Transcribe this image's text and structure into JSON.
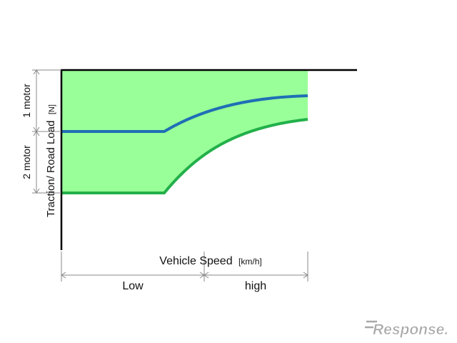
{
  "chart_data": {
    "type": "area",
    "ylabel_main": "Traction/ Road Load",
    "ylabel_unit": "[N]",
    "xlabel_main": "Vehicle Speed",
    "xlabel_unit": "[km/h]",
    "y_ranges": [
      "1 motor",
      "2 motor"
    ],
    "x_ranges": [
      "Low",
      "high"
    ],
    "colors": {
      "fill": "#99ff99",
      "one_motor_line": "#1f6fb5",
      "two_motor_line": "#22b04a",
      "axis": "#000000",
      "dimension": "#888888"
    }
  },
  "watermark": {
    "text": "Response."
  }
}
